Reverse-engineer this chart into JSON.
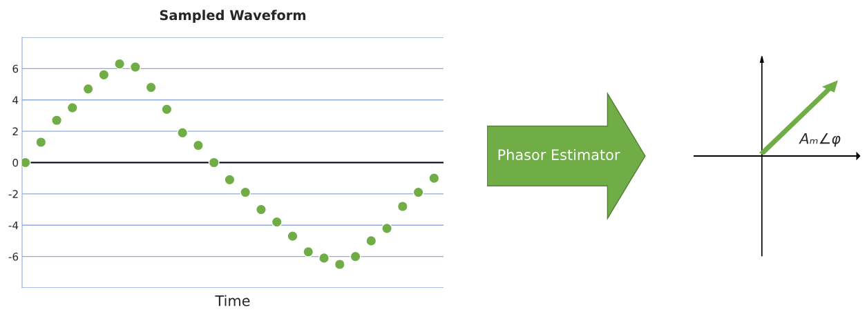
{
  "chart_data": [
    {
      "type": "scatter",
      "title": "Sampled Waveform",
      "xlabel": "Time",
      "categories": [
        null,
        null,
        null,
        null,
        null,
        null,
        null,
        null,
        null,
        null,
        null,
        null,
        null,
        null,
        null,
        null,
        null,
        null,
        null,
        null,
        null,
        null,
        null,
        null,
        null,
        null,
        null
      ],
      "values": [
        0,
        1.3,
        2.7,
        3.5,
        4.7,
        5.6,
        6.3,
        6.1,
        4.8,
        3.4,
        1.9,
        1.1,
        0,
        -1.1,
        -1.9,
        -3.0,
        -3.8,
        -4.7,
        -5.7,
        -6.1,
        -6.5,
        -6.0,
        -5.0,
        -4.2,
        -2.8,
        -1.9,
        -1.0
      ],
      "color": "#70ad47",
      "marker": "circle",
      "ylim": [
        -8,
        8
      ],
      "yticks": [
        {
          "value": -8,
          "label": null
        },
        -6,
        -4,
        -2,
        0,
        2,
        4,
        6,
        {
          "value": 8,
          "label": null
        }
      ],
      "grid": "y",
      "ref_lines": [
        {
          "axis": "y",
          "value": 0,
          "color": "#000000"
        }
      ]
    },
    {
      "type": "other",
      "annotations": [
        "Phasor Estimator",
        "Aₘ∠φ"
      ]
    }
  ]
}
